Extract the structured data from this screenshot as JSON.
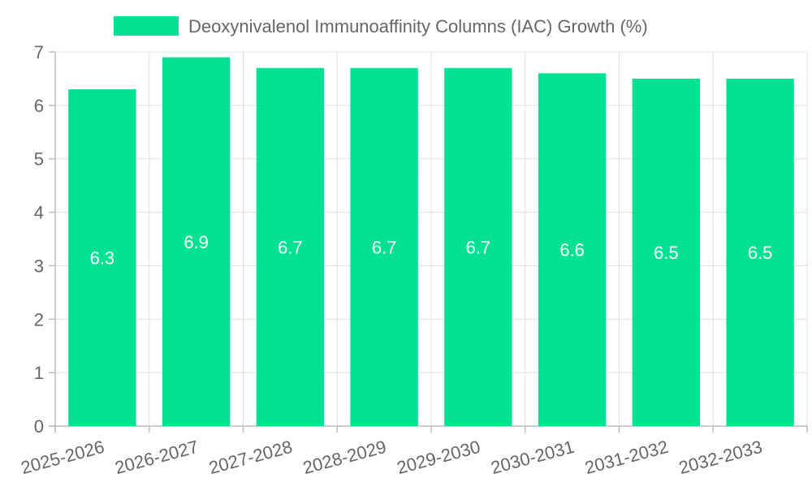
{
  "chart_data": {
    "type": "bar",
    "title": "",
    "xlabel": "",
    "ylabel": "",
    "categories": [
      "2025-2026",
      "2026-2027",
      "2027-2028",
      "2028-2029",
      "2029-2030",
      "2030-2031",
      "2031-2032",
      "2032-2033"
    ],
    "series": [
      {
        "name": "Deoxynivalenol Immunoaffinity Columns (IAC) Growth (%)",
        "values": [
          6.3,
          6.9,
          6.7,
          6.7,
          6.7,
          6.6,
          6.5,
          6.5
        ]
      }
    ],
    "data_labels": [
      "6.3",
      "6.9",
      "6.7",
      "6.7",
      "6.7",
      "6.6",
      "6.5",
      "6.5"
    ],
    "ylim": [
      0,
      7
    ],
    "y_ticks": [
      "0",
      "1",
      "2",
      "3",
      "4",
      "5",
      "6",
      "7"
    ],
    "grid": true,
    "legend_position": "top-center",
    "colors": {
      "bar": "#00e191",
      "grid": "#e0e0e0",
      "axis": "#bdbdbd",
      "tick_text": "#666666",
      "legend_text": "#666666",
      "data_label": "#ffffff"
    }
  }
}
